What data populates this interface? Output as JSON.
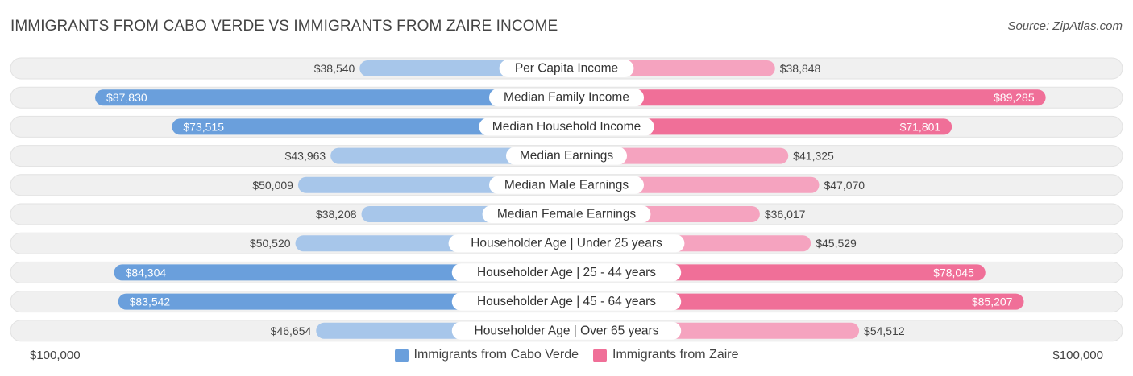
{
  "title": "IMMIGRANTS FROM CABO VERDE VS IMMIGRANTS FROM ZAIRE INCOME",
  "source": "Source: ZipAtlas.com",
  "axis": {
    "left_label": "$100,000",
    "right_label": "$100,000"
  },
  "colors": {
    "left_strong": "#6a9fdc",
    "left_light": "#a7c6ea",
    "right_strong": "#f06f98",
    "right_light": "#f5a3bf",
    "row_bg": "#f0f0f0"
  },
  "chart_data": {
    "type": "bar",
    "orientation": "horizontal-diverging",
    "xlim": [
      0,
      100000
    ],
    "categories": [
      "Per Capita Income",
      "Median Family Income",
      "Median Household Income",
      "Median Earnings",
      "Median Male Earnings",
      "Median Female Earnings",
      "Householder Age | Under 25 years",
      "Householder Age | 25 - 44 years",
      "Householder Age | 45 - 64 years",
      "Householder Age | Over 65 years"
    ],
    "series": [
      {
        "name": "Immigrants from Cabo Verde",
        "values": [
          38540,
          87830,
          73515,
          43963,
          50009,
          38208,
          50520,
          84304,
          83542,
          46654
        ],
        "labels": [
          "$38,540",
          "$87,830",
          "$73,515",
          "$43,963",
          "$50,009",
          "$38,208",
          "$50,520",
          "$84,304",
          "$83,542",
          "$46,654"
        ]
      },
      {
        "name": "Immigrants from Zaire",
        "values": [
          38848,
          89285,
          71801,
          41325,
          47070,
          36017,
          45529,
          78045,
          85207,
          54512
        ],
        "labels": [
          "$38,848",
          "$89,285",
          "$71,801",
          "$41,325",
          "$47,070",
          "$36,017",
          "$45,529",
          "$78,045",
          "$85,207",
          "$54,512"
        ]
      }
    ],
    "strong_rows": [
      1,
      2,
      7,
      8
    ],
    "legend_position": "bottom-center"
  }
}
